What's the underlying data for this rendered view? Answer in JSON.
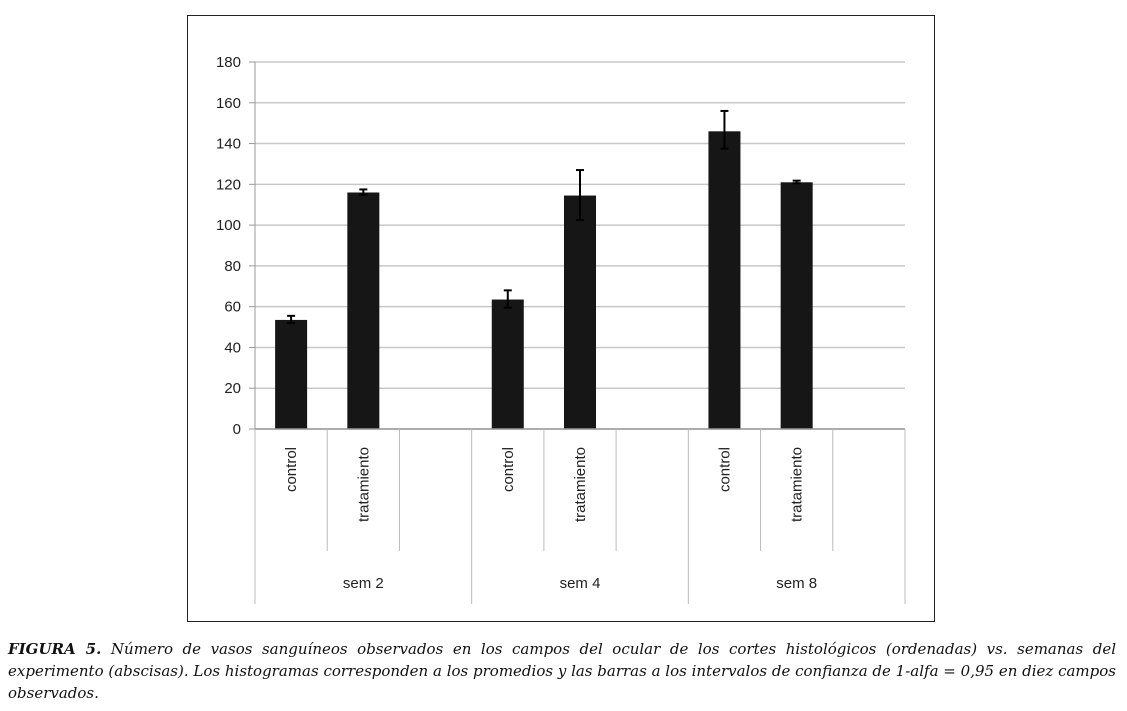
{
  "chart_data": {
    "type": "bar",
    "groups": [
      "sem 2",
      "sem 4",
      "sem 8"
    ],
    "categories": [
      "control",
      "tratamiento"
    ],
    "bars": [
      {
        "group": "sem 2",
        "category": "control",
        "value": 53.5,
        "err_low": 52.0,
        "err_high": 55.5
      },
      {
        "group": "sem 2",
        "category": "tratamiento",
        "value": 116,
        "err_low": 115.0,
        "err_high": 117.5
      },
      {
        "group": "sem 4",
        "category": "control",
        "value": 63.5,
        "err_low": 59.5,
        "err_high": 68.0
      },
      {
        "group": "sem 4",
        "category": "tratamiento",
        "value": 114.5,
        "err_low": 102.5,
        "err_high": 127.0
      },
      {
        "group": "sem 8",
        "category": "control",
        "value": 146,
        "err_low": 137.5,
        "err_high": 156.0
      },
      {
        "group": "sem 8",
        "category": "tratamiento",
        "value": 121,
        "err_low": 120.5,
        "err_high": 121.8
      }
    ],
    "yticks": [
      0,
      20,
      40,
      60,
      80,
      100,
      120,
      140,
      160,
      180
    ],
    "ylim": [
      0,
      180
    ],
    "grid": true,
    "legend": "none",
    "bar_color": "#161616",
    "grid_color": "#c8c8c8"
  },
  "caption": {
    "label": "FIGURA 5.",
    "text": "Número de vasos sanguíneos observados en los campos del ocular de los cortes histológicos (ordenadas) vs. semanas del experimento (abscisas). Los histogramas corresponden a los promedios y las barras a los intervalos de confianza de 1-alfa = 0,95 en diez campos observados."
  }
}
